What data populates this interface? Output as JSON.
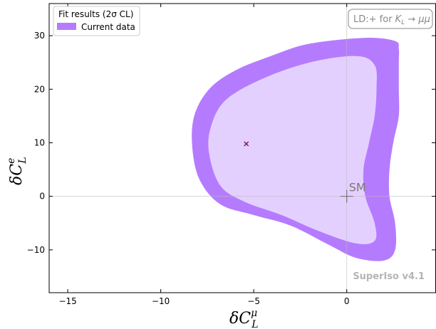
{
  "chart_data": {
    "type": "contour",
    "xlabel_main": "δC",
    "xlabel_sub": "L",
    "xlabel_sup": "μ",
    "ylabel_main": "δC",
    "ylabel_sub": "L",
    "ylabel_sup": "e",
    "xlim": [
      -16,
      4.8
    ],
    "ylim": [
      -18,
      36
    ],
    "x_ticks": [
      -15,
      -10,
      -5,
      0
    ],
    "x_tick_labels": [
      "−15",
      "−10",
      "−5",
      "0"
    ],
    "y_ticks": [
      -10,
      0,
      10,
      20,
      30
    ],
    "y_tick_labels": [
      "−10",
      "0",
      "10",
      "20",
      "30"
    ],
    "legend": {
      "title": "Fit results (2σ CL)",
      "entries": [
        {
          "label": "Current data",
          "color": "#b57bff"
        }
      ],
      "placement": "top-left"
    },
    "tag": {
      "prefix": "LD:+ for ",
      "k": "K",
      "k_sub": "L",
      "arrow": " → ",
      "mm": "μμ"
    },
    "watermark": "SuperIso v4.1",
    "sm_point": {
      "label": "SM",
      "x": 0,
      "y": 0
    },
    "best_fit": {
      "x": -5.4,
      "y": 9.8
    },
    "regions": [
      {
        "name": "outer",
        "color": "#b57bff",
        "boundary": [
          [
            2.6,
            29.0
          ],
          [
            1.0,
            29.6
          ],
          [
            -2.0,
            28.5
          ],
          [
            -4.0,
            26.3
          ],
          [
            -6.0,
            23.5
          ],
          [
            -7.4,
            20.0
          ],
          [
            -8.2,
            15.0
          ],
          [
            -8.3,
            9.0
          ],
          [
            -7.9,
            3.0
          ],
          [
            -6.8,
            -1.5
          ],
          [
            -5.0,
            -3.5
          ],
          [
            -3.0,
            -5.5
          ],
          [
            -1.0,
            -9.0
          ],
          [
            0.5,
            -11.5
          ],
          [
            2.0,
            -12.0
          ],
          [
            2.6,
            -10.0
          ],
          [
            2.6,
            -5.0
          ],
          [
            2.3,
            0.0
          ],
          [
            2.3,
            5.0
          ],
          [
            2.5,
            10.0
          ],
          [
            2.8,
            15.0
          ],
          [
            2.8,
            20.0
          ],
          [
            2.8,
            25.0
          ],
          [
            2.8,
            27.5
          ]
        ]
      },
      {
        "name": "inner",
        "color": "#e4d0ff",
        "boundary": [
          [
            0.5,
            26.2
          ],
          [
            -2.0,
            25.0
          ],
          [
            -4.5,
            22.0
          ],
          [
            -6.5,
            18.0
          ],
          [
            -7.3,
            13.0
          ],
          [
            -7.4,
            8.0
          ],
          [
            -6.8,
            2.0
          ],
          [
            -5.5,
            -1.0
          ],
          [
            -3.5,
            -3.5
          ],
          [
            -1.5,
            -6.5
          ],
          [
            0.5,
            -8.8
          ],
          [
            1.5,
            -8.3
          ],
          [
            1.5,
            -5.0
          ],
          [
            1.0,
            0.0
          ],
          [
            0.9,
            5.0
          ],
          [
            1.2,
            10.0
          ],
          [
            1.5,
            15.0
          ],
          [
            1.6,
            20.0
          ],
          [
            1.5,
            24.5
          ]
        ]
      }
    ],
    "grid": "zero lines only"
  }
}
